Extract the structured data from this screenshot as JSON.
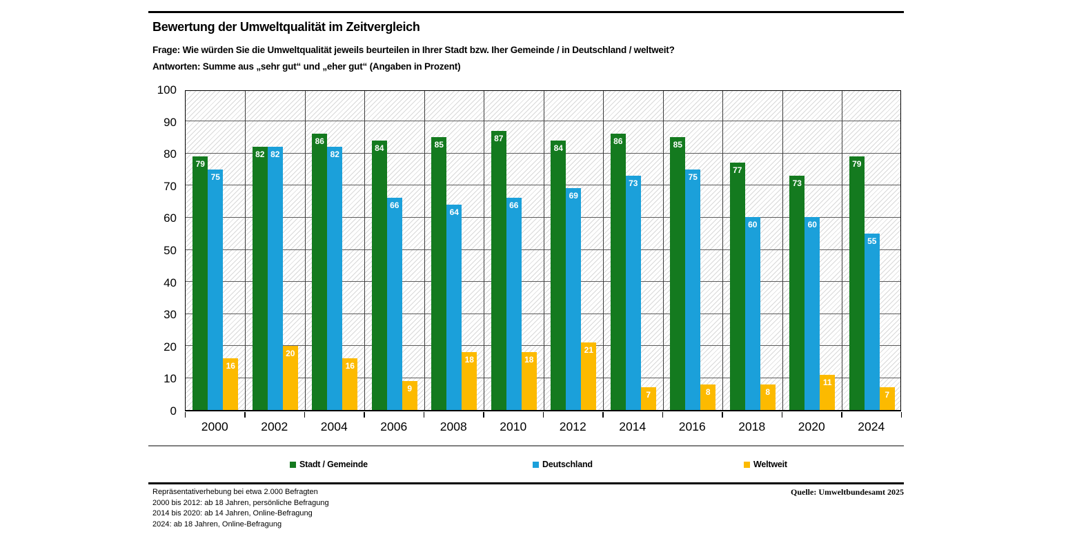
{
  "header": {
    "title": "Bewertung der Umweltqualität im Zeitvergleich",
    "question": "Frage: Wie würden Sie die Umweltqualität jeweils beurteilen in Ihrer Stadt bzw. Iher Gemeinde / in Deutschland / weltweit?",
    "answers": "Antworten: Summe aus „sehr gut“ und „eher gut“ (Angaben in Prozent)"
  },
  "chart_data": {
    "type": "bar",
    "categories": [
      "2000",
      "2002",
      "2004",
      "2006",
      "2008",
      "2010",
      "2012",
      "2014",
      "2016",
      "2018",
      "2020",
      "2024"
    ],
    "series": [
      {
        "name": "Stadt / Gemeinde",
        "color": "#147a1f",
        "values": [
          79,
          82,
          86,
          84,
          85,
          87,
          84,
          86,
          85,
          77,
          73,
          79
        ]
      },
      {
        "name": "Deutschland",
        "color": "#1ba0da",
        "values": [
          75,
          82,
          82,
          66,
          64,
          66,
          69,
          73,
          75,
          60,
          60,
          55
        ]
      },
      {
        "name": "Weltweit",
        "color": "#fcba00",
        "values": [
          16,
          20,
          16,
          9,
          18,
          18,
          21,
          7,
          8,
          8,
          11,
          7
        ]
      }
    ],
    "ylim": [
      0,
      100
    ],
    "y_step": 10,
    "grid": true,
    "hatch_background": true,
    "legend_position": "bottom",
    "value_labels": "inside-top-white"
  },
  "legend_x_offsets": [
    420,
    772,
    1078
  ],
  "footnotes": [
    "Repräsentativerhebung bei etwa 2.000 Befragten",
    "2000 bis 2012:  ab 18 Jahren, persönliche Befragung",
    "2014 bis 2020: ab 14 Jahren, Online-Befragung",
    "2024: ab 18 Jahren, Online-Befragung"
  ],
  "source": "Quelle: Umweltbundesamt 2025"
}
